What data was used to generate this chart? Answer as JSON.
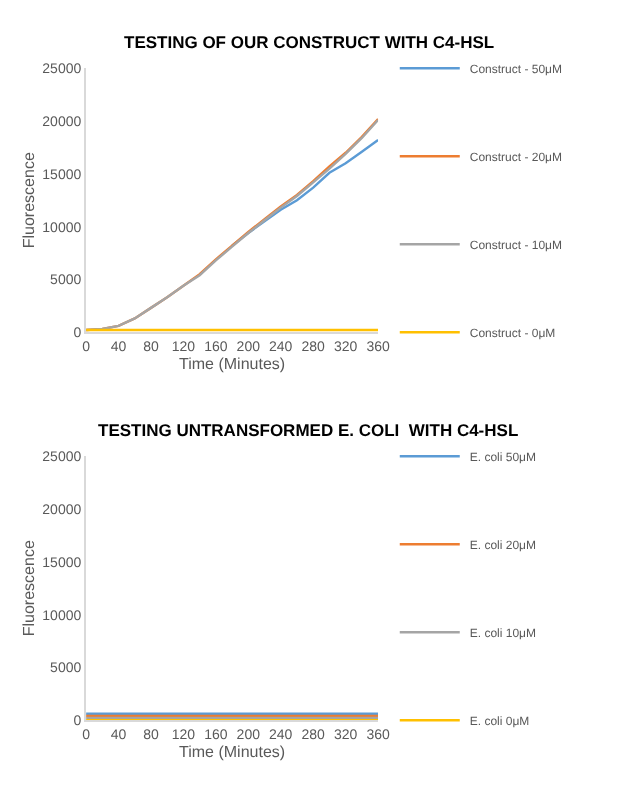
{
  "chart_data": [
    {
      "type": "line",
      "title": "TESTING OF OUR CONSTRUCT WITH C4-HSL",
      "xlabel": "Time (Minutes)",
      "ylabel": "Fluorescence",
      "x": [
        0,
        20,
        40,
        60,
        80,
        100,
        120,
        140,
        160,
        180,
        200,
        220,
        240,
        260,
        280,
        300,
        320,
        340,
        360
      ],
      "xlim": [
        0,
        360
      ],
      "xticks": [
        0,
        40,
        80,
        120,
        160,
        200,
        240,
        280,
        320,
        360
      ],
      "ylim": [
        0,
        25000
      ],
      "yticks": [
        0,
        5000,
        10000,
        15000,
        20000,
        25000
      ],
      "grid": false,
      "legend": "right",
      "marker": "none",
      "series": [
        {
          "name": "Construct - 50μM",
          "color": "#5b9bd5",
          "values": [
            null,
            null,
            null,
            null,
            null,
            null,
            null,
            null,
            null,
            8200,
            9400,
            10500,
            11600,
            12500,
            13700,
            15100,
            16000,
            17100,
            18200
          ]
        },
        {
          "name": "Construct - 20μM",
          "color": "#ed7d31",
          "values": [
            200,
            300,
            600,
            1300,
            2300,
            3300,
            4400,
            5500,
            6900,
            8200,
            9500,
            10700,
            11900,
            13000,
            14300,
            15700,
            17000,
            18500,
            20200
          ]
        },
        {
          "name": "Construct - 10μM",
          "color": "#a5a5a5",
          "values": [
            200,
            300,
            600,
            1300,
            2300,
            3300,
            4400,
            5400,
            6800,
            8100,
            9400,
            10600,
            11800,
            12900,
            14200,
            15500,
            16900,
            18400,
            20100
          ]
        },
        {
          "name": "Construct - 0μM",
          "color": "#ffc000",
          "values": [
            200,
            200,
            200,
            200,
            200,
            200,
            200,
            200,
            200,
            200,
            200,
            200,
            200,
            200,
            200,
            200,
            200,
            200,
            200
          ]
        }
      ]
    },
    {
      "type": "line",
      "title": "TESTING UNTRANSFORMED E. COLI  WITH C4-HSL",
      "xlabel": "Time (Minutes)",
      "ylabel": "Fluorescence",
      "x": [
        0,
        20,
        40,
        60,
        80,
        100,
        120,
        140,
        160,
        180,
        200,
        220,
        240,
        260,
        280,
        300,
        320,
        340,
        360
      ],
      "xlim": [
        0,
        360
      ],
      "xticks": [
        0,
        40,
        80,
        120,
        160,
        200,
        240,
        280,
        320,
        360
      ],
      "ylim": [
        0,
        25000
      ],
      "yticks": [
        0,
        5000,
        10000,
        15000,
        20000,
        25000
      ],
      "grid": false,
      "legend": "right",
      "marker": "none",
      "series": [
        {
          "name": "E. coli 50μM",
          "color": "#5b9bd5",
          "values": [
            600,
            600,
            600,
            600,
            600,
            600,
            600,
            600,
            600,
            600,
            600,
            600,
            600,
            600,
            600,
            600,
            600,
            600,
            600
          ]
        },
        {
          "name": "E. coli 20μM",
          "color": "#ed7d31",
          "values": [
            400,
            400,
            400,
            400,
            400,
            400,
            400,
            400,
            400,
            400,
            400,
            400,
            400,
            400,
            400,
            400,
            400,
            400,
            400
          ]
        },
        {
          "name": "E. coli 10μM",
          "color": "#a5a5a5",
          "values": [
            200,
            200,
            200,
            200,
            200,
            200,
            200,
            200,
            200,
            200,
            200,
            200,
            200,
            200,
            200,
            200,
            200,
            200,
            200
          ]
        },
        {
          "name": "E. coli 0μM",
          "color": "#ffc000",
          "values": [
            0,
            0,
            0,
            0,
            0,
            0,
            0,
            0,
            0,
            0,
            0,
            0,
            0,
            0,
            0,
            0,
            0,
            0,
            0
          ]
        }
      ]
    }
  ]
}
